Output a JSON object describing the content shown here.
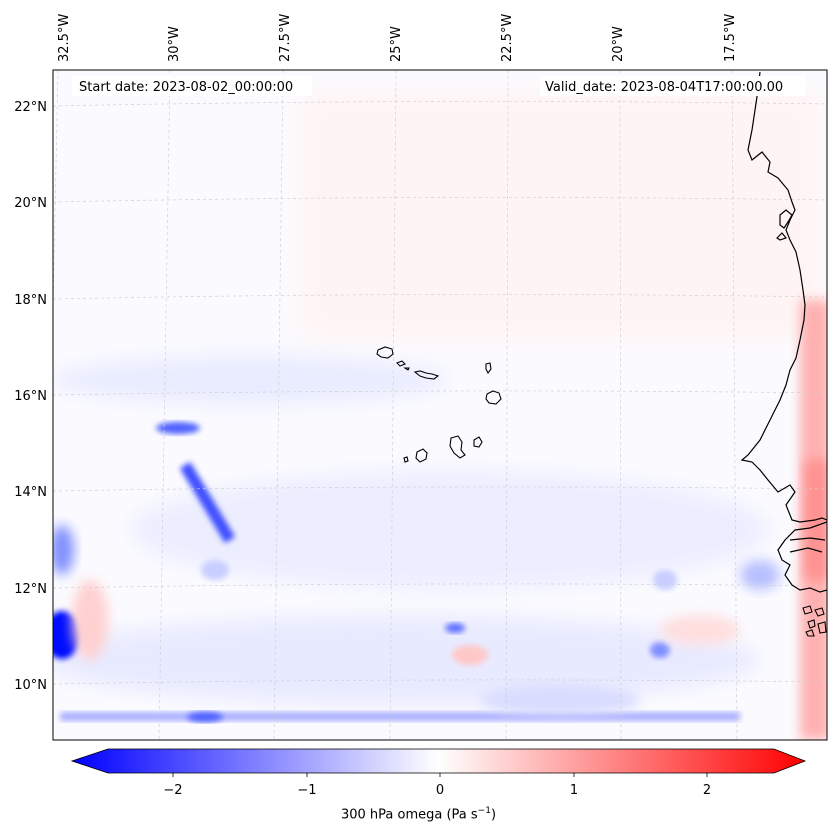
{
  "header": {
    "start_date": "Start date: 2023-08-02_00:00:00",
    "valid_date": "Valid_date: 2023-08-04T17:00:00.00"
  },
  "axes": {
    "lon_ticks": [
      "32.5°W",
      "30°W",
      "27.5°W",
      "25°W",
      "22.5°W",
      "20°W",
      "17.5°W"
    ],
    "lat_ticks": [
      "22°N",
      "20°N",
      "18°N",
      "16°N",
      "14°N",
      "12°N",
      "10°N"
    ]
  },
  "colorbar": {
    "ticks": [
      "−2",
      "−1",
      "0",
      "1",
      "2"
    ],
    "label_main": "300 hPa omega (Pa s",
    "label_exp": "−1",
    "label_close": ")",
    "vmin": -2.5,
    "vmax": 2.5,
    "colors": {
      "low": "#0000ff",
      "mid": "#ffffff",
      "high": "#ff0000"
    }
  },
  "map": {
    "extent": {
      "lon_min": -32.7,
      "lon_max": -16.1,
      "lat_min": 8.9,
      "lat_max": 22.8
    },
    "coastline_color": "#000000",
    "gridline_color": "#cccccc"
  }
}
